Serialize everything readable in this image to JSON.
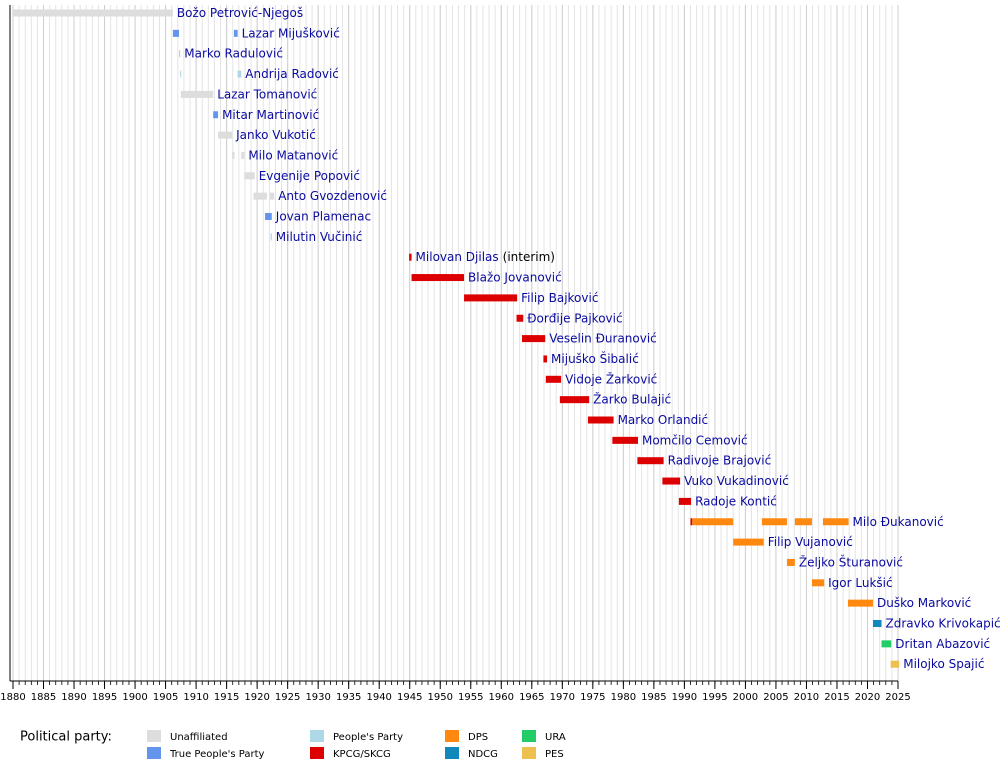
{
  "chart_data": {
    "type": "timeline",
    "xlim": [
      1880,
      2025
    ],
    "xticks": [
      1880,
      1885,
      1890,
      1895,
      1900,
      1905,
      1910,
      1915,
      1920,
      1925,
      1930,
      1935,
      1940,
      1945,
      1950,
      1955,
      1960,
      1965,
      1970,
      1975,
      1980,
      1985,
      1990,
      1995,
      2000,
      2005,
      2010,
      2015,
      2020,
      2025
    ],
    "minor_xticks": [
      1880,
      1881,
      1882,
      1883,
      1884,
      1885,
      1886,
      1887,
      1888,
      1889,
      1890,
      1891,
      1892,
      1893,
      1894,
      1895,
      1896,
      1897,
      1898,
      1899,
      1900,
      1901,
      1902,
      1903,
      1904,
      1905,
      1906,
      1907,
      1908,
      1909,
      1910,
      1911,
      1912,
      1913,
      1914,
      1915,
      1916,
      1917,
      1918,
      1919,
      1920,
      1921,
      1922,
      1923,
      1924,
      1925,
      1926,
      1927,
      1928,
      1929,
      1930,
      1931,
      1932,
      1933,
      1934,
      1935,
      1936,
      1937,
      1938,
      1939,
      1940,
      1941,
      1942,
      1943,
      1944,
      1945,
      1946,
      1947,
      1948,
      1949,
      1950,
      1951,
      1952,
      1953,
      1954,
      1955,
      1956,
      1957,
      1958,
      1959,
      1960,
      1961,
      1962,
      1963,
      1964,
      1965,
      1966,
      1967,
      1968,
      1969,
      1970,
      1971,
      1972,
      1973,
      1974,
      1975,
      1976,
      1977,
      1978,
      1979,
      1980,
      1981,
      1982,
      1983,
      1984,
      1985,
      1986,
      1987,
      1988,
      1989,
      1990,
      1991,
      1992,
      1993,
      1994,
      1995,
      1996,
      1997,
      1998,
      1999,
      2000,
      2001,
      2002,
      2003,
      2004,
      2005,
      2006,
      2007,
      2008,
      2009,
      2010,
      2011,
      2012,
      2013,
      2014,
      2015,
      2016,
      2017,
      2018,
      2019,
      2020,
      2021,
      2022,
      2023,
      2024,
      2025
    ],
    "grid": true,
    "legend_title": "Political party:",
    "parties": [
      {
        "name": "Unaffiliated",
        "color": "#dddddd"
      },
      {
        "name": "True People's Party",
        "color": "#6495ed"
      },
      {
        "name": "People's Party",
        "color": "#add8e6"
      },
      {
        "name": "KPCG/SKCG",
        "color": "#dd0000"
      },
      {
        "name": "DPS",
        "color": "#ff8811"
      },
      {
        "name": "NDCG",
        "color": "#1188bb"
      },
      {
        "name": "URA",
        "color": "#22cc66"
      },
      {
        "name": "PES",
        "color": "#eec050"
      }
    ],
    "rows": [
      {
        "name": "Božo Petrović-Njegoš",
        "terms": [
          {
            "start": 1880,
            "end": 1906.2,
            "party": 0
          }
        ]
      },
      {
        "name": "Lazar Mijušković",
        "terms": [
          {
            "start": 1906.2,
            "end": 1907.2,
            "party": 1
          },
          {
            "start": 1916.2,
            "end": 1916.8,
            "party": 1
          }
        ]
      },
      {
        "name": "Marko Radulović",
        "terms": [
          {
            "start": 1907.2,
            "end": 1907.4,
            "party": 2
          }
        ]
      },
      {
        "name": "Andrija Radović",
        "terms": [
          {
            "start": 1907.4,
            "end": 1907.5,
            "party": 2
          },
          {
            "start": 1916.8,
            "end": 1917.4,
            "party": 2
          }
        ]
      },
      {
        "name": "Lazar Tomanović",
        "terms": [
          {
            "start": 1907.5,
            "end": 1912.8,
            "party": 0
          }
        ]
      },
      {
        "name": "Mitar Martinović",
        "terms": [
          {
            "start": 1912.8,
            "end": 1913.6,
            "party": 1
          }
        ]
      },
      {
        "name": "Janko Vukotić",
        "terms": [
          {
            "start": 1913.6,
            "end": 1915.9,
            "party": 0
          }
        ]
      },
      {
        "name": "Milo Matanović",
        "terms": [
          {
            "start": 1915.9,
            "end": 1916.3,
            "party": 0
          },
          {
            "start": 1917.4,
            "end": 1917.9,
            "party": 0
          }
        ]
      },
      {
        "name": "Evgenije Popović",
        "terms": [
          {
            "start": 1917.9,
            "end": 1919.6,
            "party": 0
          }
        ]
      },
      {
        "name": "Anto Gvozdenović",
        "terms": [
          {
            "start": 1919.4,
            "end": 1921.6,
            "party": 0
          },
          {
            "start": 1922.1,
            "end": 1922.8,
            "party": 0
          }
        ]
      },
      {
        "name": "Jovan Plamenac",
        "terms": [
          {
            "start": 1921.3,
            "end": 1922.4,
            "party": 1
          }
        ]
      },
      {
        "name": "Milutin Vučinić",
        "terms": [
          {
            "start": 1922.2,
            "end": 1922.4,
            "party": 2
          }
        ]
      },
      {
        "name": "Milovan Djilas",
        "note": "(interim)",
        "terms": [
          {
            "start": 1944.9,
            "end": 1945.3,
            "party": 3
          }
        ]
      },
      {
        "name": "Blažo Jovanović",
        "terms": [
          {
            "start": 1945.3,
            "end": 1953.9,
            "party": 3
          }
        ]
      },
      {
        "name": "Filip Bajković",
        "terms": [
          {
            "start": 1953.9,
            "end": 1962.6,
            "party": 3
          }
        ]
      },
      {
        "name": "Đorđije Pajković",
        "terms": [
          {
            "start": 1962.5,
            "end": 1963.6,
            "party": 3
          }
        ]
      },
      {
        "name": "Veselin Đuranović",
        "terms": [
          {
            "start": 1963.4,
            "end": 1967.2,
            "party": 3
          }
        ]
      },
      {
        "name": "Mijuško Šibalić",
        "terms": [
          {
            "start": 1966.9,
            "end": 1967.5,
            "party": 3
          }
        ]
      },
      {
        "name": "Vidoje Žarković",
        "terms": [
          {
            "start": 1967.3,
            "end": 1969.8,
            "party": 3
          }
        ]
      },
      {
        "name": "Žarko Bulajić",
        "terms": [
          {
            "start": 1969.6,
            "end": 1974.4,
            "party": 3
          }
        ]
      },
      {
        "name": "Marko Orlandić",
        "terms": [
          {
            "start": 1974.2,
            "end": 1978.4,
            "party": 3
          }
        ]
      },
      {
        "name": "Momčilo Cemović",
        "terms": [
          {
            "start": 1978.2,
            "end": 1982.4,
            "party": 3
          }
        ]
      },
      {
        "name": "Radivoje Brajović",
        "terms": [
          {
            "start": 1982.3,
            "end": 1986.6,
            "party": 3
          }
        ]
      },
      {
        "name": "Vuko Vukadinović",
        "terms": [
          {
            "start": 1986.4,
            "end": 1989.3,
            "party": 3
          }
        ]
      },
      {
        "name": "Radoje Kontić",
        "terms": [
          {
            "start": 1989.1,
            "end": 1991.1,
            "party": 3
          }
        ]
      },
      {
        "name": "Milo Đukanović",
        "terms": [
          {
            "start": 1991.0,
            "end": 1991.3,
            "party": 3
          },
          {
            "start": 1991.3,
            "end": 1998.0,
            "party": 4
          },
          {
            "start": 2002.7,
            "end": 2006.8,
            "party": 4
          },
          {
            "start": 2008.1,
            "end": 2010.9,
            "party": 4
          },
          {
            "start": 2012.7,
            "end": 2016.9,
            "party": 4
          }
        ]
      },
      {
        "name": "Filip Vujanović",
        "terms": [
          {
            "start": 1998.0,
            "end": 2003.0,
            "party": 4
          }
        ]
      },
      {
        "name": "Željko Šturanović",
        "terms": [
          {
            "start": 2006.8,
            "end": 2008.1,
            "party": 4
          }
        ]
      },
      {
        "name": "Igor Lukšić",
        "terms": [
          {
            "start": 2010.9,
            "end": 2012.9,
            "party": 4
          }
        ]
      },
      {
        "name": "Duško Marković",
        "terms": [
          {
            "start": 2016.8,
            "end": 2020.9,
            "party": 4
          }
        ]
      },
      {
        "name": "Zdravko Krivokapić",
        "terms": [
          {
            "start": 2020.9,
            "end": 2022.3,
            "party": 5
          }
        ]
      },
      {
        "name": "Dritan Abazović",
        "terms": [
          {
            "start": 2022.3,
            "end": 2023.9,
            "party": 6
          }
        ]
      },
      {
        "name": "Milojko Spajić",
        "terms": [
          {
            "start": 2023.8,
            "end": 2025.2,
            "party": 7
          }
        ]
      }
    ]
  }
}
